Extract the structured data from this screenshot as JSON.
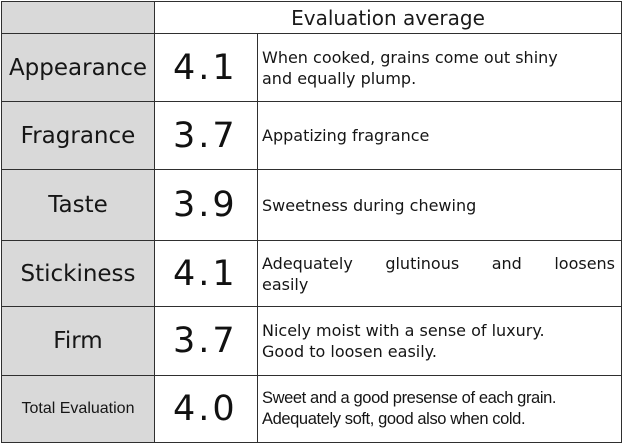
{
  "table": {
    "header": "Evaluation average",
    "rows": [
      {
        "label": "Appearance",
        "score": "4.1",
        "lines": [
          "When cooked, grains come out shiny",
          "and equally plump."
        ]
      },
      {
        "label": "Fragrance",
        "score": "3.7",
        "lines": [
          "Appatizing fragrance",
          ""
        ]
      },
      {
        "label": "Taste",
        "score": "3.9",
        "lines": [
          "Sweetness during chewing",
          ""
        ]
      },
      {
        "label": "Stickiness",
        "score": "4.1",
        "lines": [
          "Adequately glutinous and loosens",
          "easily"
        ]
      },
      {
        "label": "Firm",
        "score": "3.7",
        "lines": [
          "Nicely moist with a sense of luxury.",
          "Good to loosen easily."
        ]
      },
      {
        "label": "Total Evaluation",
        "score": "4.0",
        "lines": [
          "Sweet and a good presense of each grain.",
          "Adequately soft, good also when cold."
        ]
      }
    ]
  }
}
